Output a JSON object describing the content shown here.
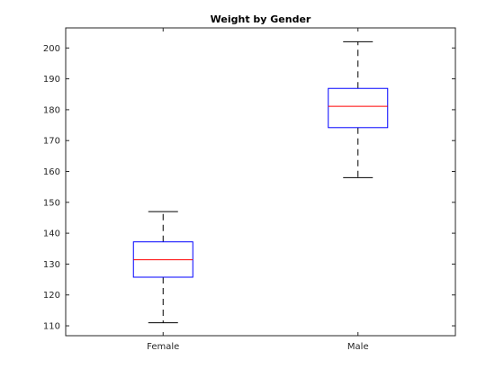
{
  "chart_data": {
    "type": "box",
    "title": "Weight by Gender",
    "xlabel": "",
    "ylabel": "",
    "categories": [
      "Female",
      "Male"
    ],
    "boxes": [
      {
        "category": "Female",
        "whisker_low": 111,
        "q1": 125.75,
        "median": 131.4,
        "q3": 137.2,
        "whisker_high": 147
      },
      {
        "category": "Male",
        "whisker_low": 158,
        "q1": 174.2,
        "median": 181.1,
        "q3": 186.9,
        "whisker_high": 202
      }
    ],
    "ylim": [
      106.8,
      206.5
    ],
    "yticks": [
      110,
      120,
      130,
      140,
      150,
      160,
      170,
      180,
      190,
      200
    ],
    "grid": false,
    "box_color": "#0000ff",
    "median_color": "#ff0000",
    "whisker_color": "#000000"
  }
}
